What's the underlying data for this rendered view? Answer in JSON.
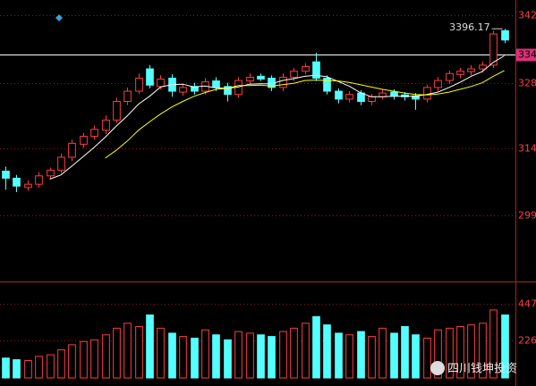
{
  "chart_data": {
    "type": "candlestick",
    "ylim": [
      2853,
      3458
    ],
    "yticks": [
      {
        "value": 3425,
        "label": "342"
      },
      {
        "value": 3340,
        "label": "334"
      },
      {
        "value": 3280,
        "label": "328"
      },
      {
        "value": 3140,
        "label": "314"
      },
      {
        "value": 2995,
        "label": "299"
      }
    ],
    "highlight_tick": 1,
    "up_color": "#ff3c3c",
    "down_color": "#54ffff",
    "grid": true,
    "open": [
      3090,
      3075,
      3055,
      3062,
      3080,
      3092,
      3120,
      3148,
      3165,
      3178,
      3200,
      3240,
      3262,
      3310,
      3272,
      3290,
      3260,
      3272,
      3262,
      3284,
      3272,
      3255,
      3284,
      3294,
      3290,
      3270,
      3292,
      3305,
      3325,
      3290,
      3262,
      3245,
      3258,
      3240,
      3250,
      3260,
      3254,
      3252,
      3245,
      3270,
      3285,
      3298,
      3304,
      3310,
      3318,
      3392
    ],
    "high": [
      3100,
      3082,
      3070,
      3088,
      3098,
      3128,
      3158,
      3172,
      3188,
      3210,
      3248,
      3270,
      3300,
      3318,
      3296,
      3298,
      3278,
      3280,
      3290,
      3292,
      3280,
      3292,
      3300,
      3300,
      3296,
      3300,
      3312,
      3322,
      3345,
      3296,
      3268,
      3262,
      3264,
      3256,
      3266,
      3266,
      3260,
      3258,
      3276,
      3292,
      3306,
      3312,
      3318,
      3326,
      3392,
      3396.17
    ],
    "low": [
      3050,
      3045,
      3048,
      3055,
      3074,
      3086,
      3112,
      3140,
      3158,
      3170,
      3194,
      3232,
      3256,
      3268,
      3266,
      3250,
      3252,
      3255,
      3255,
      3262,
      3240,
      3248,
      3278,
      3284,
      3262,
      3262,
      3284,
      3298,
      3284,
      3255,
      3236,
      3238,
      3232,
      3232,
      3244,
      3244,
      3242,
      3222,
      3238,
      3262,
      3278,
      3290,
      3296,
      3302,
      3312,
      3365
    ],
    "close": [
      3075,
      3058,
      3062,
      3080,
      3092,
      3120,
      3150,
      3165,
      3180,
      3200,
      3240,
      3262,
      3290,
      3275,
      3288,
      3262,
      3270,
      3262,
      3282,
      3270,
      3255,
      3285,
      3292,
      3288,
      3270,
      3292,
      3305,
      3315,
      3290,
      3262,
      3245,
      3255,
      3240,
      3250,
      3258,
      3252,
      3250,
      3245,
      3270,
      3285,
      3300,
      3305,
      3310,
      3318,
      3385,
      3372
    ],
    "high_label": "3396.17",
    "series": [
      {
        "color": "#ffffff",
        "values": [
          null,
          null,
          null,
          null,
          3073,
          3082,
          3101,
          3121,
          3141,
          3163,
          3187,
          3209,
          3234,
          3251,
          3271,
          3276,
          3277,
          3271,
          3273,
          3269,
          3268,
          3271,
          3277,
          3278,
          3278,
          3285,
          3289,
          3294,
          3296,
          3293,
          3283,
          3273,
          3259,
          3250,
          3250,
          3251,
          3251,
          3251,
          3255,
          3260,
          3270,
          3281,
          3294,
          3304,
          3324,
          3338
        ]
      },
      {
        "color": "#ffff00",
        "values": [
          null,
          null,
          null,
          null,
          null,
          null,
          null,
          null,
          null,
          3118,
          3135,
          3155,
          3178,
          3196,
          3213,
          3228,
          3240,
          3251,
          3259,
          3266,
          3268,
          3274,
          3274,
          3275,
          3273,
          3276,
          3279,
          3285,
          3286,
          3285,
          3284,
          3281,
          3276,
          3271,
          3266,
          3262,
          3258,
          3255,
          3254,
          3256,
          3260,
          3266,
          3272,
          3280,
          3294,
          3306
        ]
      }
    ],
    "volume": [
      120,
      110,
      105,
      130,
      140,
      170,
      200,
      220,
      230,
      260,
      300,
      330,
      310,
      380,
      300,
      270,
      250,
      240,
      290,
      260,
      230,
      280,
      270,
      260,
      250,
      280,
      300,
      330,
      370,
      320,
      270,
      260,
      280,
      250,
      300,
      270,
      310,
      260,
      240,
      290,
      300,
      310,
      320,
      330,
      410,
      380
    ],
    "vlim": [
      0,
      582
    ],
    "vticks": [
      447,
      226
    ],
    "watermark": "四川钱坤投资"
  }
}
